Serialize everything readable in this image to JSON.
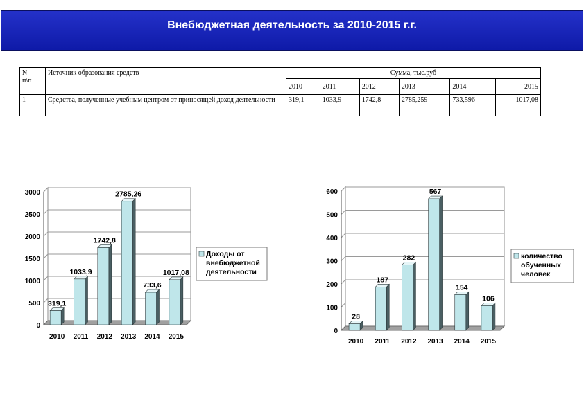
{
  "header": {
    "title": "Внебюджетная деятельность за  2010-2015 г.г."
  },
  "table": {
    "col_n": "N\nп\\п",
    "col_n_l1": "N",
    "col_n_l2": "п\\п",
    "col_source": "Источник образования средств",
    "col_sum": "Сумма, тыс.руб",
    "years": [
      "2010",
      "2011",
      "2012",
      "2013",
      "2014",
      "2015"
    ],
    "rows": [
      {
        "n": "1",
        "source": "Средства, полученные учебным центром от приносящей доход деятельности",
        "values": [
          "319,1",
          "1033,9",
          "1742,8",
          "2785,259",
          "733,596",
          "1017,08"
        ]
      }
    ]
  },
  "chart_data": [
    {
      "type": "bar",
      "categories": [
        "2010",
        "2011",
        "2012",
        "2013",
        "2014",
        "2015"
      ],
      "series": [
        {
          "name": "Доходы от внебюджетной деятельности",
          "values": [
            319.1,
            1033.9,
            1742.8,
            2785.26,
            733.6,
            1017.08
          ]
        }
      ],
      "data_labels": [
        "319,1",
        "1033,9",
        "1742,8",
        "2785,26",
        "733,6",
        "1017,08"
      ],
      "yticks": [
        0,
        500,
        1000,
        1500,
        2000,
        2500,
        3000
      ],
      "ylim": [
        0,
        3000
      ],
      "legend_lines": [
        "Доходы от",
        "внебюджетной",
        "деятельности"
      ],
      "legend_position": "right",
      "grid": true,
      "color": "#bfe6ea"
    },
    {
      "type": "bar",
      "categories": [
        "2010",
        "2011",
        "2012",
        "2013",
        "2014",
        "2015"
      ],
      "series": [
        {
          "name": "количество обученных человек",
          "values": [
            28,
            187,
            282,
            567,
            154,
            106
          ]
        }
      ],
      "data_labels": [
        "28",
        "187",
        "282",
        "567",
        "154",
        "106"
      ],
      "yticks": [
        0,
        100,
        200,
        300,
        400,
        500,
        600
      ],
      "ylim": [
        0,
        600
      ],
      "legend_lines": [
        "количество",
        "обученных",
        "человек"
      ],
      "legend_position": "right",
      "grid": true,
      "color": "#bfe6ea"
    }
  ]
}
